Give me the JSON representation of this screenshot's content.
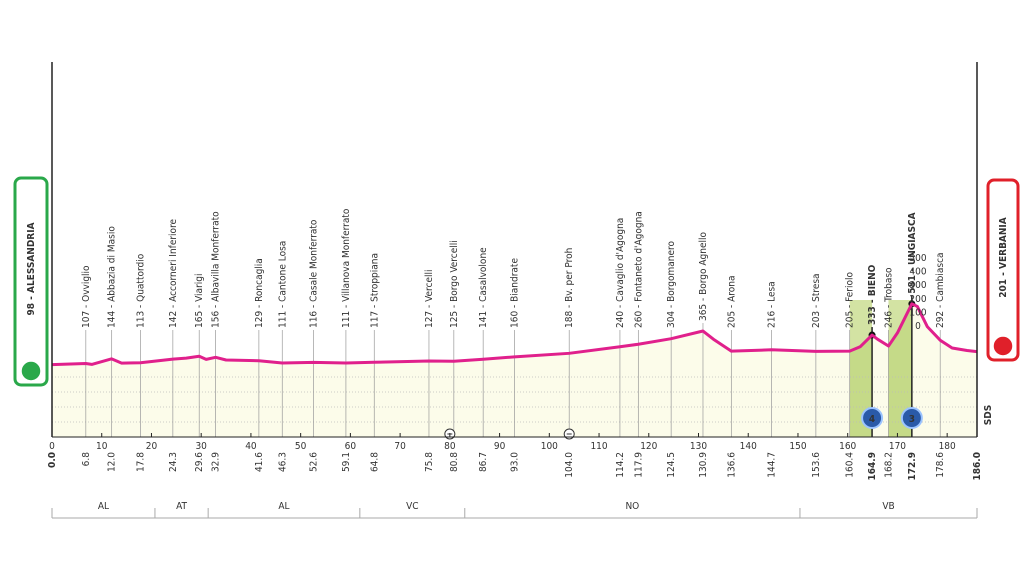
{
  "chart_data": {
    "type": "profile",
    "start": {
      "label": "98 - ALESSANDRIA",
      "altitude": 98,
      "color": "#2aa84a"
    },
    "finish": {
      "label": "201 - VERBANIA",
      "altitude": 201,
      "color": "#e0202a"
    },
    "side_text": "SDS",
    "line_color": "#e0208c",
    "fill_color": "#fbfbe6",
    "xlim": [
      0,
      186
    ],
    "xticks": [
      0,
      10,
      20,
      30,
      40,
      50,
      60,
      70,
      80,
      90,
      100,
      110,
      120,
      130,
      140,
      150,
      160,
      170,
      180
    ],
    "km_start": {
      "value": 0,
      "label": "0.0"
    },
    "km_finish": {
      "value": 186,
      "label": "186.0"
    },
    "profile": {
      "x": [
        0,
        6.8,
        8,
        12,
        14,
        17.8,
        24.3,
        27,
        29.6,
        31,
        32.9,
        35,
        41.6,
        46.3,
        52.6,
        59.1,
        64.8,
        75.8,
        80.8,
        86.7,
        93,
        104,
        114.2,
        117.9,
        124.5,
        130.9,
        133,
        136.6,
        144.7,
        153.6,
        160.4,
        162.5,
        164.9,
        166,
        168.2,
        170,
        172.9,
        174,
        176,
        178.6,
        181,
        184,
        186
      ],
      "values": [
        98,
        107,
        100,
        144,
        110,
        113,
        142,
        150,
        165,
        140,
        156,
        135,
        129,
        111,
        116,
        111,
        117,
        127,
        125,
        141,
        160,
        188,
        240,
        260,
        304,
        365,
        300,
        205,
        216,
        203,
        205,
        240,
        333,
        300,
        246,
        350,
        581,
        560,
        400,
        292,
        230,
        210,
        201
      ]
    },
    "waypoints": [
      {
        "label": "107 - Ovviglio",
        "altitude": 107,
        "km": 6.8
      },
      {
        "label": "144 - Abbazia di Masio",
        "altitude": 144,
        "km": {
          "value": 12,
          "label": "12.0"
        }
      },
      {
        "label": "113 - Quattordio",
        "altitude": 113,
        "km": 17.8
      },
      {
        "label": "142 - Accorneri Inferiore",
        "altitude": 142,
        "km": 24.3
      },
      {
        "label": "165 - Viarigi",
        "altitude": 165,
        "km": 29.6
      },
      {
        "label": "156 - Albavilla Monferrato",
        "altitude": 156,
        "km": 32.9
      },
      {
        "label": "129 - Roncaglia",
        "altitude": 129,
        "km": 41.6
      },
      {
        "label": "111 - Cantone Losa",
        "altitude": 111,
        "km": 46.3
      },
      {
        "label": "116 - Casale Monferrato",
        "altitude": 116,
        "km": 52.6
      },
      {
        "label": "111 - Villanova Monferrato",
        "altitude": 111,
        "km": 59.1
      },
      {
        "label": "117 - Stroppiana",
        "altitude": 117,
        "km": 64.8
      },
      {
        "label": "127 - Vercelli",
        "altitude": 127,
        "km": 75.8
      },
      {
        "label": "125 - Borgo Vercelli",
        "altitude": 125,
        "km": 80.8
      },
      {
        "label": "141 - Casalvolone",
        "altitude": 141,
        "km": 86.7
      },
      {
        "label": "160 - Biandrate",
        "altitude": 160,
        "km": {
          "value": 93,
          "label": "93.0"
        }
      },
      {
        "label": "188 - Bv. per Proh",
        "altitude": 188,
        "km": {
          "value": 104,
          "label": "104.0"
        }
      },
      {
        "label": "240 - Cavaglio d'Agogna",
        "altitude": 240,
        "km": 114.2
      },
      {
        "label": "260 - Fontaneto d'Agogna",
        "altitude": 260,
        "km": 117.9
      },
      {
        "label": "304 - Borgomanero",
        "altitude": 304,
        "km": 124.5
      },
      {
        "label": "365 - Borgo Agnello",
        "altitude": 365,
        "km": 130.9
      },
      {
        "label": "205 - Arona",
        "altitude": 205,
        "km": 136.6
      },
      {
        "label": "216 - Lesa",
        "altitude": 216,
        "km": 144.7
      },
      {
        "label": "203 - Stresa",
        "altitude": 203,
        "km": 153.6
      },
      {
        "label": "205 - Feriolo",
        "altitude": 205,
        "km": 160.4
      },
      {
        "label": "333 - BIENO",
        "altitude": 333,
        "km": 164.9,
        "highlight": true
      },
      {
        "label": "246 - Trobaso",
        "altitude": 246,
        "km": 168.2
      },
      {
        "label": "581 - UNGIASCA",
        "altitude": 581,
        "km": 172.9,
        "highlight": true
      },
      {
        "label": "292 - Cambiasca",
        "altitude": 292,
        "km": 178.6
      }
    ],
    "climbs": [
      {
        "from": 160.4,
        "to": 164.9,
        "category": 4
      },
      {
        "from": 168.2,
        "to": 172.9,
        "category": 3
      }
    ],
    "climb_scale": [
      500,
      400,
      300,
      200,
      100,
      0
    ],
    "sprints": [
      80,
      104
    ],
    "regions": [
      {
        "label": "AL",
        "from": 0,
        "to": 20.7
      },
      {
        "label": "AT",
        "from": 20.7,
        "to": 31.4
      },
      {
        "label": "AL",
        "from": 31.4,
        "to": 61.9
      },
      {
        "label": "VC",
        "from": 61.9,
        "to": 83
      },
      {
        "label": "NO",
        "from": 83,
        "to": 150.4
      },
      {
        "label": "VB",
        "from": 150.4,
        "to": 186
      }
    ]
  }
}
